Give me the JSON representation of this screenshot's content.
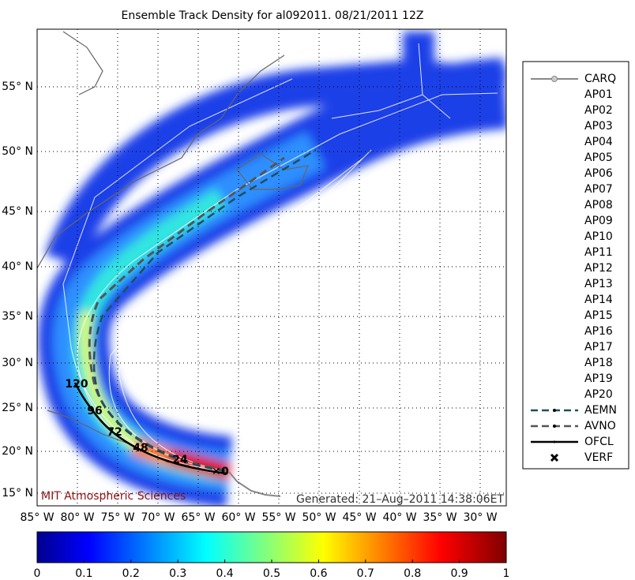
{
  "title": "Ensemble Track Density for al092011. 08/21/2011 12Z",
  "lat_labels": [
    "55° N",
    "50° N",
    "45° N",
    "40° N",
    "35° N",
    "30° N",
    "25° N",
    "20° N",
    "15° N"
  ],
  "lon_labels": [
    "85° W",
    "80° W",
    "75° W",
    "70° W",
    "65° W",
    "60° W",
    "55° W",
    "50° W",
    "45° W",
    "40° W",
    "35° W",
    "30° W"
  ],
  "legend": [
    "CARQ",
    "AP01",
    "AP02",
    "AP03",
    "AP04",
    "AP05",
    "AP06",
    "AP07",
    "AP08",
    "AP09",
    "AP10",
    "AP11",
    "AP12",
    "AP13",
    "AP14",
    "AP15",
    "AP16",
    "AP17",
    "AP18",
    "AP19",
    "AP20",
    "AEMN",
    "AVNO",
    "OFCL",
    "VERF"
  ],
  "track_labels": [
    "120",
    "96",
    "72",
    "48",
    "24",
    "0"
  ],
  "credit": "MIT Atmospheric Sciences",
  "generated": "Generated: 21–Aug–2011 14:38:06ET",
  "colorbar": {
    "range": [
      0,
      1
    ],
    "ticks": [
      0,
      0.1,
      0.2,
      0.3,
      0.4,
      0.5,
      0.6,
      0.7,
      0.8,
      0.9,
      1
    ]
  }
}
